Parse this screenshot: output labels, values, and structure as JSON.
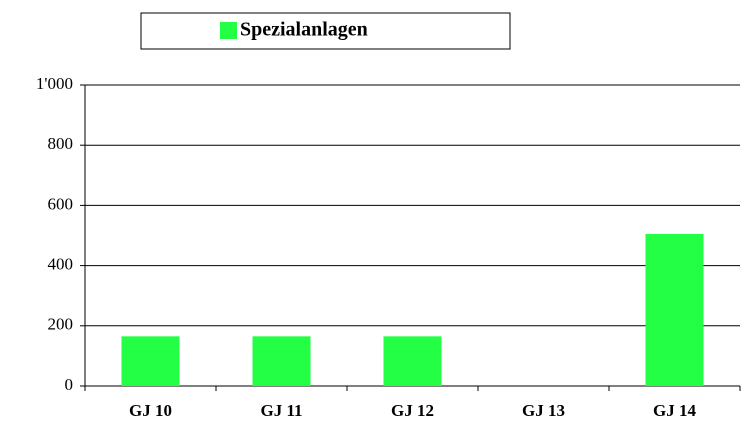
{
  "chart_data": {
    "type": "bar",
    "categories": [
      "GJ 10",
      "GJ 11",
      "GJ 12",
      "GJ 13",
      "GJ 14"
    ],
    "series": [
      {
        "name": "Spezialanlagen",
        "color": "#22ff44",
        "values": [
          165,
          165,
          165,
          0,
          505
        ]
      }
    ],
    "ylim": [
      0,
      1000
    ],
    "yticks": [
      0,
      200,
      400,
      600,
      800,
      {
        "value": 1000,
        "label": "1'000"
      }
    ],
    "grid": true,
    "legend": "top"
  }
}
